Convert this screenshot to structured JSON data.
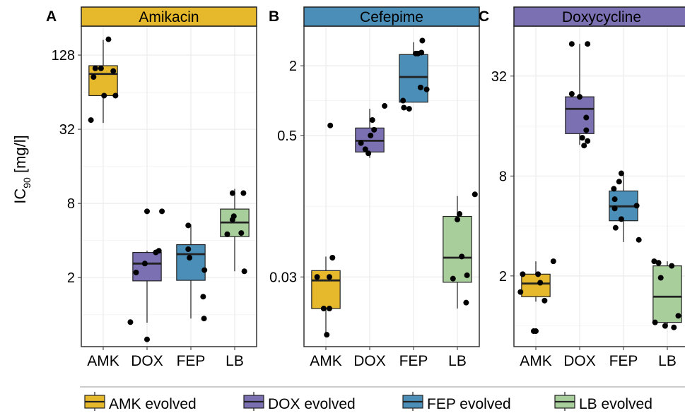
{
  "ylabel_main": "IC",
  "ylabel_sub": "90",
  "ylabel_unit": " [mg/l]",
  "colors": {
    "AMK": "#E6B82B",
    "DOX": "#7A70B2",
    "FEP": "#4B8FB8",
    "LB": "#A8CE9C",
    "strip_edge": "#222222",
    "grid_major": "#EBEBEB",
    "grid_minor": "#F4F4F4",
    "panel_border": "#333333"
  },
  "legend": [
    {
      "key": "AMK",
      "label": "AMK evolved"
    },
    {
      "key": "DOX",
      "label": "DOX evolved"
    },
    {
      "key": "FEP",
      "label": "FEP evolved"
    },
    {
      "key": "LB",
      "label": "LB evolved"
    }
  ],
  "chart_data": [
    {
      "type": "box",
      "panel_label": "A",
      "strip_title": "Amikacin",
      "strip_color": "#E6B82B",
      "scale": "log2",
      "ylim": [
        0.55,
        220
      ],
      "yticks": [
        2,
        8,
        32,
        128
      ],
      "ytick_labels": [
        "2",
        "8",
        "32",
        "128"
      ],
      "categories": [
        "AMK",
        "DOX",
        "FEP",
        "LB"
      ],
      "boxes": [
        {
          "cat": "AMK",
          "q1": 60,
          "median": 90,
          "q3": 105,
          "whisker_low": 36,
          "whisker_high": 170
        },
        {
          "cat": "DOX",
          "q1": 1.88,
          "median": 2.6,
          "q3": 3.2,
          "whisker_low": 0.86,
          "whisker_high": 3.3
        },
        {
          "cat": "FEP",
          "q1": 1.9,
          "median": 3.1,
          "q3": 3.7,
          "whisker_low": 0.93,
          "whisker_high": 5.4
        },
        {
          "cat": "LB",
          "q1": 4.3,
          "median": 5.6,
          "q3": 7.2,
          "whisker_low": 2.25,
          "whisker_high": 10.5
        }
      ],
      "points": [
        {
          "cat": "AMK",
          "jitter": -0.28,
          "value": 38
        },
        {
          "cat": "AMK",
          "jitter": -0.22,
          "value": 85
        },
        {
          "cat": "AMK",
          "jitter": -0.18,
          "value": 100
        },
        {
          "cat": "AMK",
          "jitter": -0.05,
          "value": 100
        },
        {
          "cat": "AMK",
          "jitter": 0.02,
          "value": 60
        },
        {
          "cat": "AMK",
          "jitter": 0.12,
          "value": 172
        },
        {
          "cat": "AMK",
          "jitter": 0.23,
          "value": 95
        },
        {
          "cat": "AMK",
          "jitter": 0.28,
          "value": 60
        },
        {
          "cat": "DOX",
          "jitter": -0.38,
          "value": 0.87
        },
        {
          "cat": "DOX",
          "jitter": -0.25,
          "value": 2.2
        },
        {
          "cat": "DOX",
          "jitter": -0.05,
          "value": 2.6
        },
        {
          "cat": "DOX",
          "jitter": 0.0,
          "value": 6.9
        },
        {
          "cat": "DOX",
          "jitter": 0.0,
          "value": 0.63
        },
        {
          "cat": "DOX",
          "jitter": 0.2,
          "value": 3.2
        },
        {
          "cat": "DOX",
          "jitter": 0.27,
          "value": 3.3
        },
        {
          "cat": "DOX",
          "jitter": 0.34,
          "value": 6.9
        },
        {
          "cat": "FEP",
          "jitter": -0.03,
          "value": 2.9
        },
        {
          "cat": "FEP",
          "jitter": -0.06,
          "value": 3.4
        },
        {
          "cat": "FEP",
          "jitter": -0.06,
          "value": 5.3
        },
        {
          "cat": "FEP",
          "jitter": 0.28,
          "value": 1.4
        },
        {
          "cat": "FEP",
          "jitter": 0.31,
          "value": 2.3
        },
        {
          "cat": "FEP",
          "jitter": 0.3,
          "value": 0.93
        },
        {
          "cat": "LB",
          "jitter": -0.17,
          "value": 4.5
        },
        {
          "cat": "LB",
          "jitter": -0.05,
          "value": 5.9
        },
        {
          "cat": "LB",
          "jitter": -0.02,
          "value": 6.3
        },
        {
          "cat": "LB",
          "jitter": -0.05,
          "value": 9.7
        },
        {
          "cat": "LB",
          "jitter": 0.15,
          "value": 4.6
        },
        {
          "cat": "LB",
          "jitter": 0.2,
          "value": 9.7
        },
        {
          "cat": "LB",
          "jitter": 0.22,
          "value": 2.25
        }
      ]
    },
    {
      "type": "box",
      "panel_label": "B",
      "strip_title": "Cefepime",
      "strip_color": "#4B8FB8",
      "scale": "log2",
      "ylim": [
        0.0075,
        4.4
      ],
      "yticks": [
        0.03,
        0.5,
        2
      ],
      "ytick_labels": [
        "0.03",
        "0.5",
        "2"
      ],
      "categories": [
        "AMK",
        "DOX",
        "FEP",
        "LB"
      ],
      "boxes": [
        {
          "cat": "AMK",
          "q1": 0.016,
          "median": 0.028,
          "q3": 0.034,
          "whisker_low": 0.0095,
          "whisker_high": 0.045
        },
        {
          "cat": "DOX",
          "q1": 0.36,
          "median": 0.45,
          "q3": 0.58,
          "whisker_low": 0.32,
          "whisker_high": 0.85
        },
        {
          "cat": "FEP",
          "q1": 0.97,
          "median": 1.6,
          "q3": 2.5,
          "whisker_low": 0.97,
          "whisker_high": 3.2
        },
        {
          "cat": "LB",
          "q1": 0.027,
          "median": 0.044,
          "q3": 0.1,
          "whisker_low": 0.016,
          "whisker_high": 0.15
        }
      ],
      "points": [
        {
          "cat": "AMK",
          "jitter": -0.2,
          "value": 0.03
        },
        {
          "cat": "AMK",
          "jitter": -0.05,
          "value": 0.016
        },
        {
          "cat": "AMK",
          "jitter": 0.02,
          "value": 0.0095
        },
        {
          "cat": "AMK",
          "jitter": 0.08,
          "value": 0.03
        },
        {
          "cat": "AMK",
          "jitter": 0.08,
          "value": 0.016
        },
        {
          "cat": "AMK",
          "jitter": 0.15,
          "value": 0.044
        },
        {
          "cat": "AMK",
          "jitter": 0.1,
          "value": 0.61
        },
        {
          "cat": "DOX",
          "jitter": -0.2,
          "value": 0.43
        },
        {
          "cat": "DOX",
          "jitter": -0.1,
          "value": 0.38
        },
        {
          "cat": "DOX",
          "jitter": -0.03,
          "value": 0.35
        },
        {
          "cat": "DOX",
          "jitter": 0.02,
          "value": 0.5
        },
        {
          "cat": "DOX",
          "jitter": 0.06,
          "value": 0.68
        },
        {
          "cat": "DOX",
          "jitter": 0.1,
          "value": 0.56
        },
        {
          "cat": "DOX",
          "jitter": 0.34,
          "value": 0.9
        },
        {
          "cat": "FEP",
          "jitter": -0.24,
          "value": 1.0
        },
        {
          "cat": "FEP",
          "jitter": -0.22,
          "value": 0.87
        },
        {
          "cat": "FEP",
          "jitter": -0.1,
          "value": 0.85
        },
        {
          "cat": "FEP",
          "jitter": 0.05,
          "value": 2.55
        },
        {
          "cat": "FEP",
          "jitter": 0.1,
          "value": 2.55
        },
        {
          "cat": "FEP",
          "jitter": 0.16,
          "value": 1.3
        },
        {
          "cat": "FEP",
          "jitter": 0.18,
          "value": 2.6
        },
        {
          "cat": "FEP",
          "jitter": 0.2,
          "value": 3.3
        },
        {
          "cat": "FEP",
          "jitter": 0.3,
          "value": 1.25
        },
        {
          "cat": "LB",
          "jitter": -0.1,
          "value": 0.029
        },
        {
          "cat": "LB",
          "jitter": 0.0,
          "value": 0.094
        },
        {
          "cat": "LB",
          "jitter": 0.05,
          "value": 0.105
        },
        {
          "cat": "LB",
          "jitter": 0.1,
          "value": 0.045
        },
        {
          "cat": "LB",
          "jitter": 0.2,
          "value": 0.018
        },
        {
          "cat": "LB",
          "jitter": 0.22,
          "value": 0.031
        },
        {
          "cat": "LB",
          "jitter": 0.4,
          "value": 0.155
        }
      ]
    },
    {
      "type": "box",
      "panel_label": "C",
      "strip_title": "Doxycycline",
      "strip_color": "#7A70B2",
      "scale": "log2",
      "ylim": [
        0.75,
        64
      ],
      "yticks": [
        2,
        8,
        32
      ],
      "ytick_labels": [
        "2",
        "8",
        "32"
      ],
      "categories": [
        "AMK",
        "DOX",
        "FEP",
        "LB"
      ],
      "boxes": [
        {
          "cat": "AMK",
          "q1": 1.5,
          "median": 1.8,
          "q3": 2.05,
          "whisker_low": 1.4,
          "whisker_high": 2.45
        },
        {
          "cat": "DOX",
          "q1": 14.4,
          "median": 20.3,
          "q3": 24.0,
          "whisker_low": 12.3,
          "whisker_high": 50
        },
        {
          "cat": "FEP",
          "q1": 4.3,
          "median": 5.25,
          "q3": 6.5,
          "whisker_low": 3.2,
          "whisker_high": 8.3
        },
        {
          "cat": "LB",
          "q1": 1.05,
          "median": 1.5,
          "q3": 2.3,
          "whisker_low": 1.0,
          "whisker_high": 2.45
        }
      ],
      "points": [
        {
          "cat": "AMK",
          "jitter": -0.35,
          "value": 1.6
        },
        {
          "cat": "AMK",
          "jitter": -0.3,
          "value": 2.05
        },
        {
          "cat": "AMK",
          "jitter": -0.05,
          "value": 0.93
        },
        {
          "cat": "AMK",
          "jitter": 0.0,
          "value": 0.93
        },
        {
          "cat": "AMK",
          "jitter": 0.05,
          "value": 2.05
        },
        {
          "cat": "AMK",
          "jitter": 0.1,
          "value": 1.82
        },
        {
          "cat": "AMK",
          "jitter": 0.2,
          "value": 1.42
        },
        {
          "cat": "AMK",
          "jitter": 0.4,
          "value": 2.45
        },
        {
          "cat": "DOX",
          "jitter": -0.18,
          "value": 50
        },
        {
          "cat": "DOX",
          "jitter": -0.18,
          "value": 25
        },
        {
          "cat": "DOX",
          "jitter": 0.0,
          "value": 24
        },
        {
          "cat": "DOX",
          "jitter": 0.06,
          "value": 13.6
        },
        {
          "cat": "DOX",
          "jitter": 0.1,
          "value": 12.2
        },
        {
          "cat": "DOX",
          "jitter": 0.15,
          "value": 18
        },
        {
          "cat": "DOX",
          "jitter": 0.15,
          "value": 15.1
        },
        {
          "cat": "DOX",
          "jitter": 0.18,
          "value": 13
        },
        {
          "cat": "DOX",
          "jitter": 0.18,
          "value": 50
        },
        {
          "cat": "FEP",
          "jitter": -0.22,
          "value": 6.7
        },
        {
          "cat": "FEP",
          "jitter": -0.2,
          "value": 5.8
        },
        {
          "cat": "FEP",
          "jitter": -0.2,
          "value": 5.1
        },
        {
          "cat": "FEP",
          "jitter": -0.18,
          "value": 3.9
        },
        {
          "cat": "FEP",
          "jitter": -0.1,
          "value": 7.4
        },
        {
          "cat": "FEP",
          "jitter": -0.05,
          "value": 4.4
        },
        {
          "cat": "FEP",
          "jitter": -0.05,
          "value": 8.3
        },
        {
          "cat": "FEP",
          "jitter": 0.3,
          "value": 5.3
        },
        {
          "cat": "FEP",
          "jitter": 0.35,
          "value": 3.3
        },
        {
          "cat": "LB",
          "jitter": -0.3,
          "value": 2.45
        },
        {
          "cat": "LB",
          "jitter": -0.28,
          "value": 1.05
        },
        {
          "cat": "LB",
          "jitter": -0.2,
          "value": 2.4
        },
        {
          "cat": "LB",
          "jitter": -0.15,
          "value": 1.95
        },
        {
          "cat": "LB",
          "jitter": -0.05,
          "value": 1.0
        },
        {
          "cat": "LB",
          "jitter": 0.1,
          "value": 2.3
        },
        {
          "cat": "LB",
          "jitter": 0.15,
          "value": 0.98
        },
        {
          "cat": "LB",
          "jitter": 0.25,
          "value": 1.15
        }
      ]
    }
  ]
}
